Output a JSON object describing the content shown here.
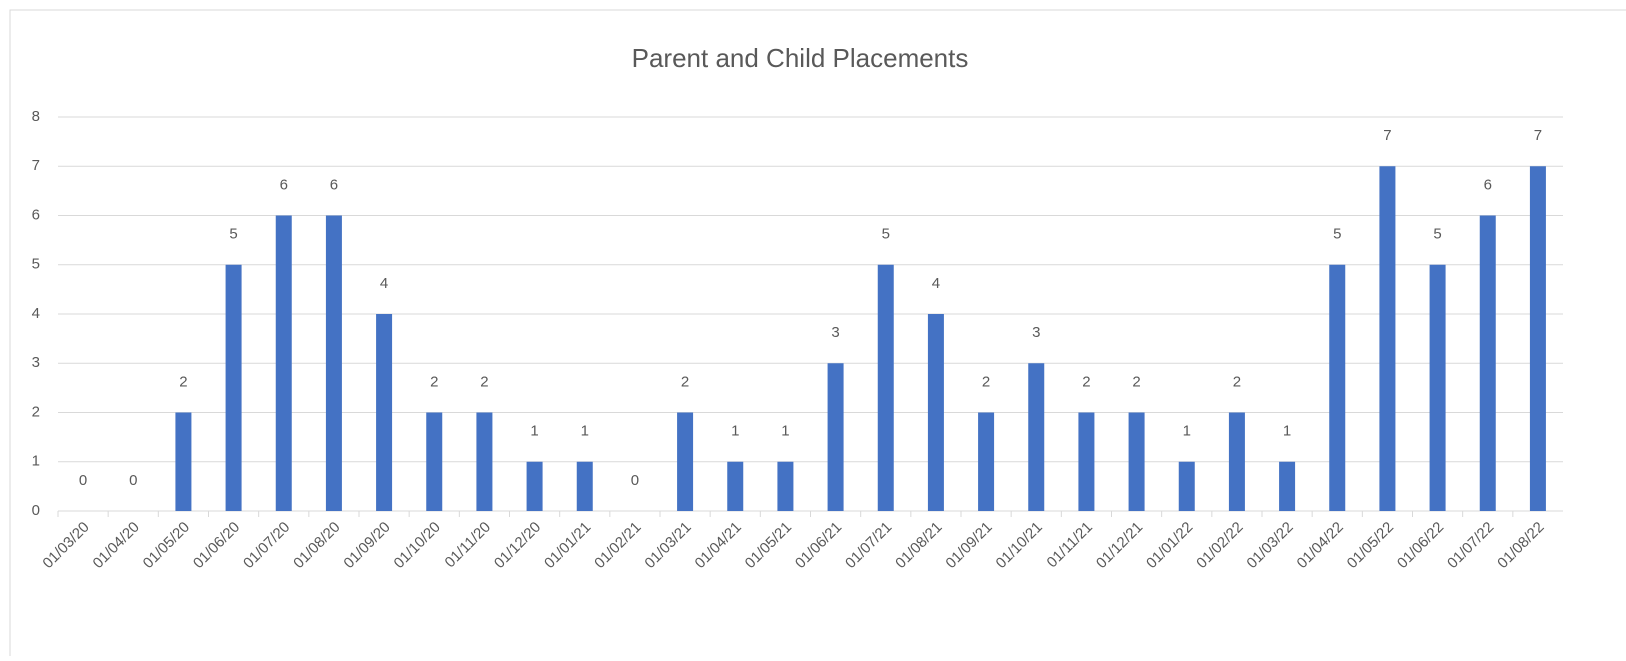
{
  "chart_data": {
    "type": "bar",
    "title": "Parent and Child Placements",
    "categories": [
      "01/03/20",
      "01/04/20",
      "01/05/20",
      "01/06/20",
      "01/07/20",
      "01/08/20",
      "01/09/20",
      "01/10/20",
      "01/11/20",
      "01/12/20",
      "01/01/21",
      "01/02/21",
      "01/03/21",
      "01/04/21",
      "01/05/21",
      "01/06/21",
      "01/07/21",
      "01/08/21",
      "01/09/21",
      "01/10/21",
      "01/11/21",
      "01/12/21",
      "01/01/22",
      "01/02/22",
      "01/03/22",
      "01/04/22",
      "01/05/22",
      "01/06/22",
      "01/07/22",
      "01/08/22"
    ],
    "values": [
      0,
      0,
      2,
      5,
      6,
      6,
      4,
      2,
      2,
      1,
      1,
      0,
      2,
      1,
      1,
      3,
      5,
      4,
      2,
      3,
      2,
      2,
      1,
      2,
      1,
      5,
      7,
      5,
      6,
      7
    ],
    "color": "#4472c4",
    "ylim": [
      0,
      8
    ],
    "yticks": [
      0,
      1,
      2,
      3,
      4,
      5,
      6,
      7,
      8
    ],
    "grid": true
  }
}
